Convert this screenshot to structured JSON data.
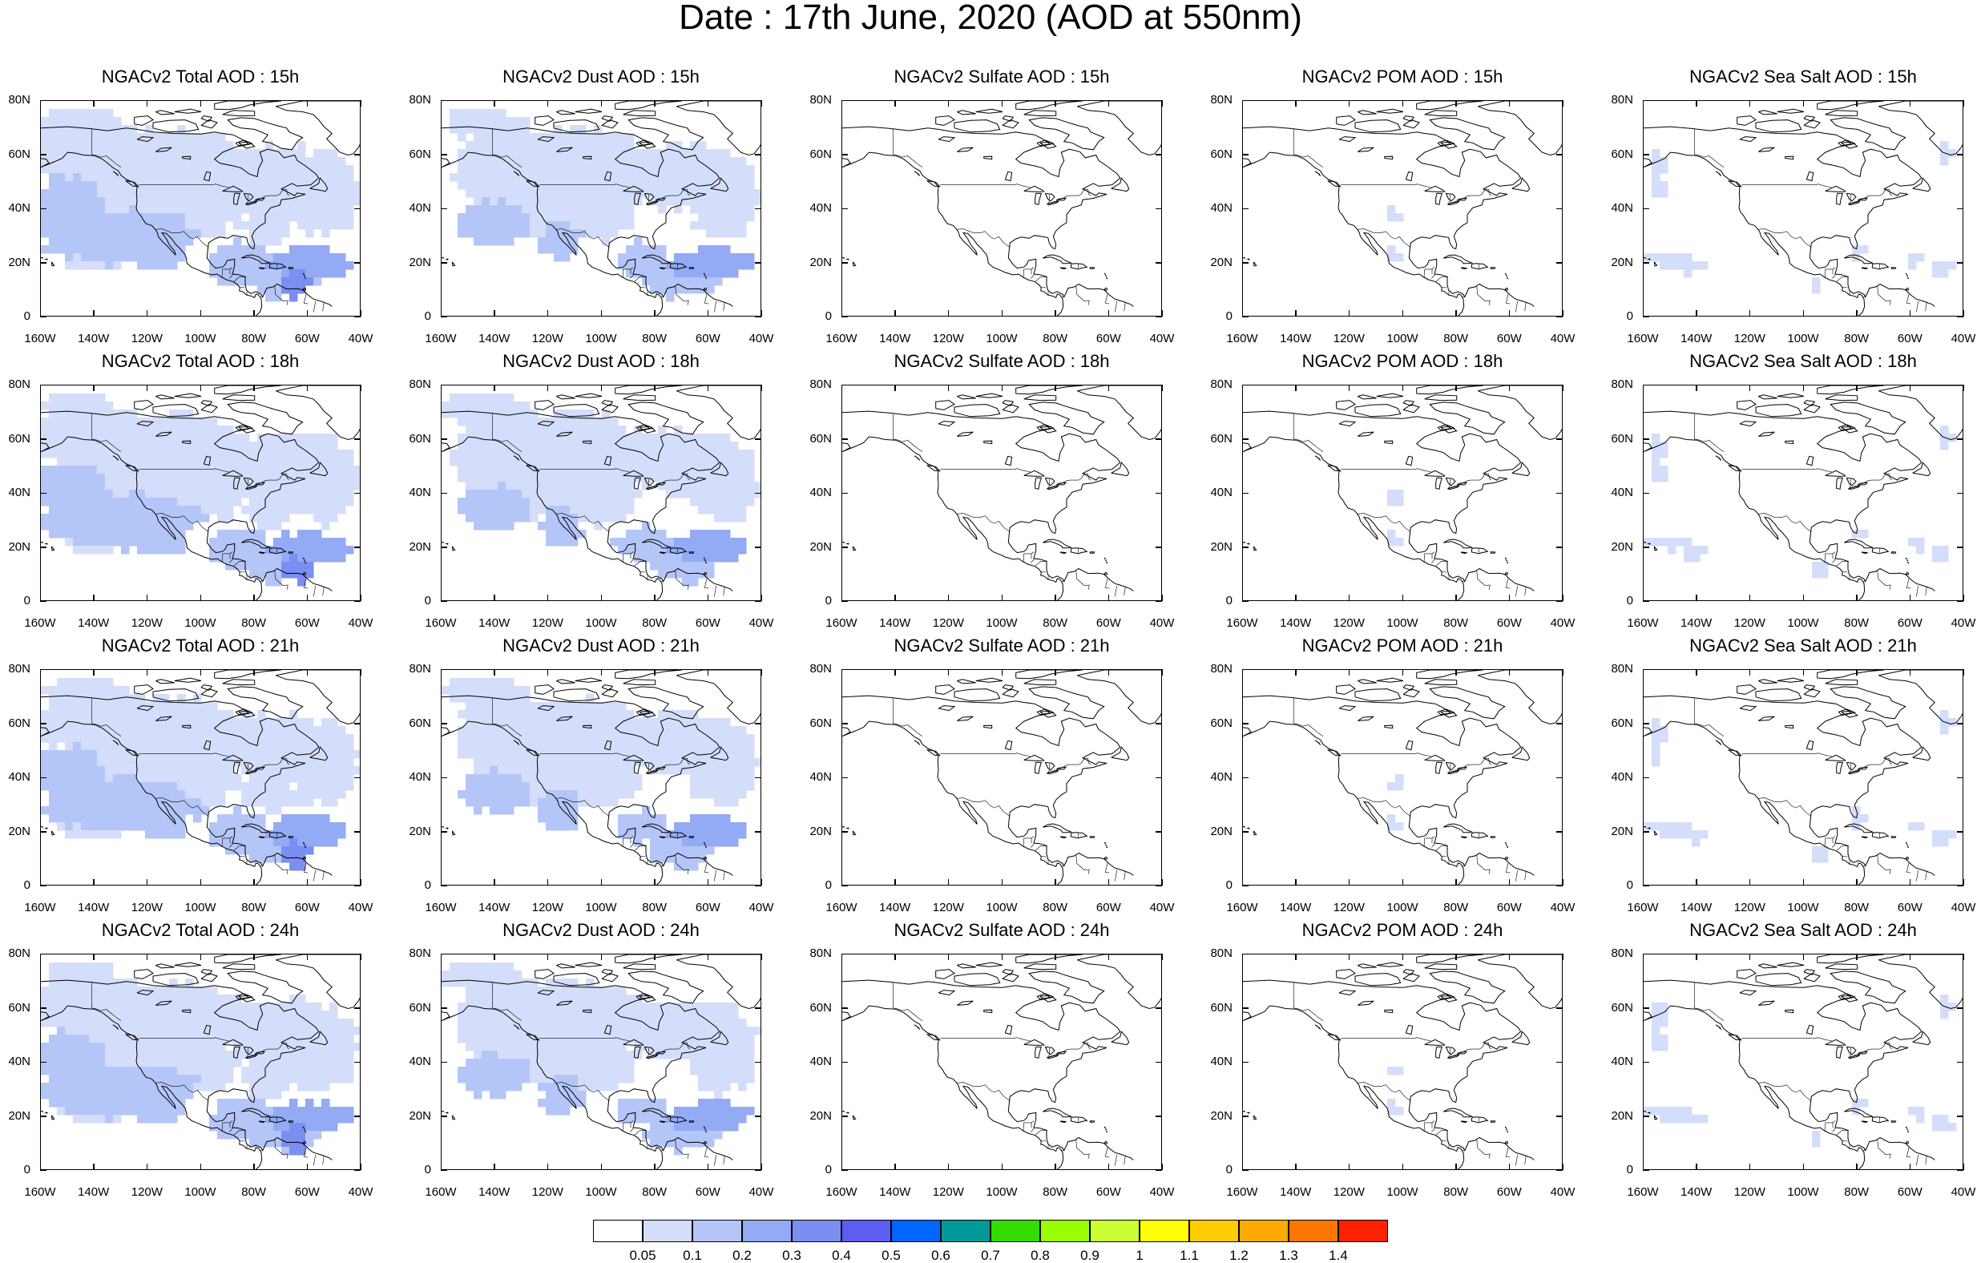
{
  "figure": {
    "title": "Date : 17th June, 2020 (AOD at 550nm)"
  },
  "axes": {
    "lat_labels": [
      "80N",
      "60N",
      "40N",
      "20N",
      "0"
    ],
    "lon_labels": [
      "160W",
      "140W",
      "120W",
      "100W",
      "80W",
      "60W",
      "40W"
    ]
  },
  "panels": [
    {
      "title": "NGACv2 Total AOD : 15h",
      "field": "total"
    },
    {
      "title": "NGACv2 Dust AOD : 15h",
      "field": "dust"
    },
    {
      "title": "NGACv2 Sulfate AOD : 15h",
      "field": "sulfate"
    },
    {
      "title": "NGACv2 POM AOD : 15h",
      "field": "pom"
    },
    {
      "title": "NGACv2 Sea Salt AOD : 15h",
      "field": "seasalt"
    },
    {
      "title": "NGACv2 Total AOD : 18h",
      "field": "total"
    },
    {
      "title": "NGACv2 Dust AOD : 18h",
      "field": "dust"
    },
    {
      "title": "NGACv2 Sulfate AOD : 18h",
      "field": "sulfate"
    },
    {
      "title": "NGACv2 POM AOD : 18h",
      "field": "pom"
    },
    {
      "title": "NGACv2 Sea Salt AOD : 18h",
      "field": "seasalt"
    },
    {
      "title": "NGACv2 Total AOD : 21h",
      "field": "total"
    },
    {
      "title": "NGACv2 Dust AOD : 21h",
      "field": "dust"
    },
    {
      "title": "NGACv2 Sulfate AOD : 21h",
      "field": "sulfate"
    },
    {
      "title": "NGACv2 POM AOD : 21h",
      "field": "pom"
    },
    {
      "title": "NGACv2 Sea Salt AOD : 21h",
      "field": "seasalt"
    },
    {
      "title": "NGACv2 Total AOD : 24h",
      "field": "total"
    },
    {
      "title": "NGACv2 Dust AOD : 24h",
      "field": "dust"
    },
    {
      "title": "NGACv2 Sulfate AOD : 24h",
      "field": "sulfate"
    },
    {
      "title": "NGACv2 POM AOD : 24h",
      "field": "pom"
    },
    {
      "title": "NGACv2 Sea Salt  AOD : 24h",
      "field": "seasalt"
    }
  ],
  "colorbar": {
    "labels": [
      "0.05",
      "0.1",
      "0.2",
      "0.3",
      "0.4",
      "0.5",
      "0.6",
      "0.7",
      "0.8",
      "0.9",
      "1",
      "1.1",
      "1.2",
      "1.3",
      "1.4"
    ],
    "colors": [
      "#ffffff",
      "#d4defa",
      "#b4c6f8",
      "#93aaf5",
      "#7b8ef2",
      "#5b5ef0",
      "#0066ff",
      "#009999",
      "#33dd00",
      "#99ff00",
      "#ccff33",
      "#ffff00",
      "#ffcc00",
      "#ffaa00",
      "#ff7700",
      "#ff2200"
    ]
  }
}
